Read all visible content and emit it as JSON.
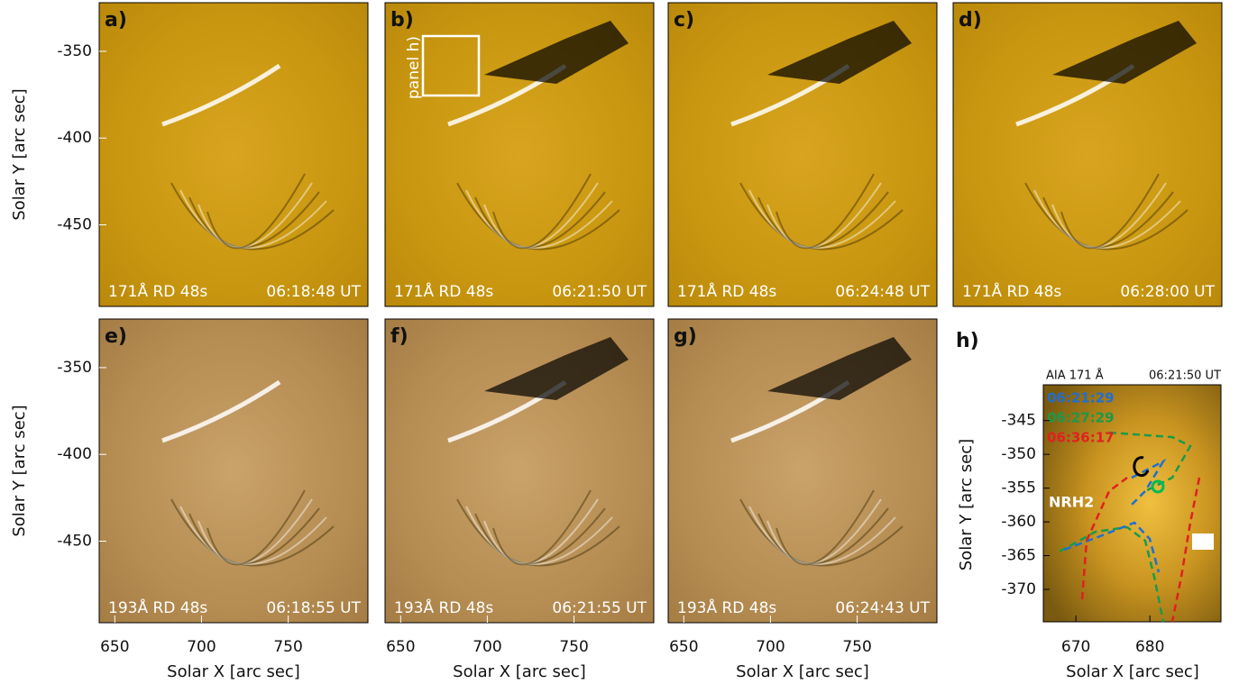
{
  "figure": {
    "y_axis_label": "Solar Y [arc sec]",
    "x_axis_label": "Solar X [arc sec]",
    "xlim": [
      641,
      796
    ],
    "ylim": [
      -497,
      -322
    ],
    "xticks": [
      650,
      700,
      750
    ],
    "yticks": [
      -350,
      -400,
      -450
    ],
    "panels": [
      {
        "label": "a)",
        "caption": "171Å RD 48s",
        "time": "06:18:48 UT"
      },
      {
        "label": "b)",
        "caption": "171Å RD 48s",
        "time": "06:21:50 UT",
        "box_label": "panel h)"
      },
      {
        "label": "c)",
        "caption": "171Å RD 48s",
        "time": "06:24:48 UT"
      },
      {
        "label": "d)",
        "caption": "171Å RD 48s",
        "time": "06:28:00 UT"
      },
      {
        "label": "e)",
        "caption": "193Å RD 48s",
        "time": "06:18:55 UT"
      },
      {
        "label": "f)",
        "caption": "193Å RD 48s",
        "time": "06:21:55 UT"
      },
      {
        "label": "g)",
        "caption": "193Å RD 48s",
        "time": "06:24:43 UT"
      }
    ],
    "inset": {
      "label": "h)",
      "title": "AIA 171 Å",
      "time": "06:21:50 UT",
      "annotation": "NRH2",
      "xlim": [
        665.6,
        689.6
      ],
      "ylim": [
        -374.8,
        -339.7
      ],
      "xticks": [
        670,
        680
      ],
      "yticks": [
        -345,
        -350,
        -355,
        -360,
        -365,
        -370
      ],
      "legend": [
        {
          "name": "06:21:29",
          "color": "#1f6fd0"
        },
        {
          "name": "06:27:29",
          "color": "#1a9a4a"
        },
        {
          "name": "06:36:17",
          "color": "#e02020"
        }
      ]
    }
  }
}
